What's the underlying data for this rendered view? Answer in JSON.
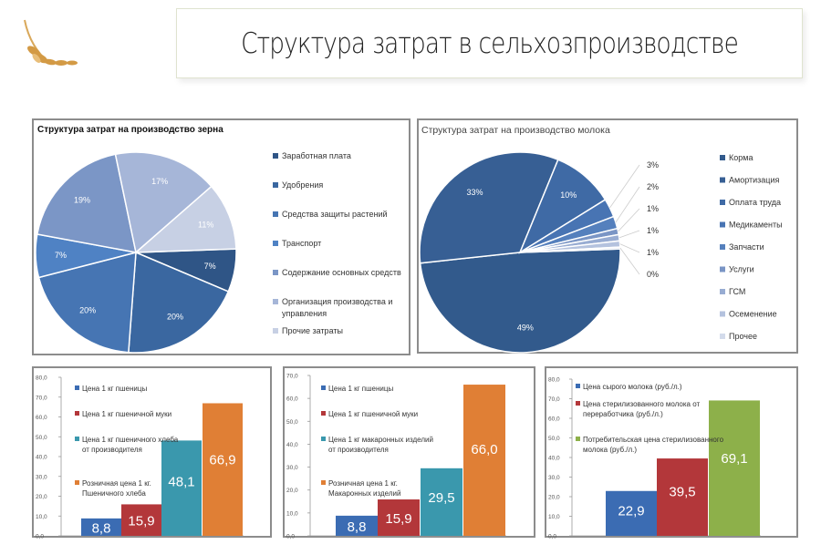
{
  "header": {
    "title": "Структура затрат в сельхозпроизводстве"
  },
  "chart_data": [
    {
      "id": "grain",
      "type": "pie",
      "title": "Структура затрат на производство зерна",
      "labels": [
        "Заработная плата",
        "Удобрения",
        "Средства защиты растений",
        "Транспорт",
        "Содержание основных средств",
        "Организация производства и управления",
        "Прочие затраты"
      ],
      "values": [
        7,
        20,
        20,
        7,
        19,
        17,
        11
      ],
      "data_labels": [
        "7%",
        "20%",
        "20%",
        "7%",
        "19%",
        "17%",
        "11%"
      ],
      "colors": [
        "#2f5586",
        "#3a67a0",
        "#4675b3",
        "#4f82c4",
        "#7b96c6",
        "#a6b6d8",
        "#c7d0e4"
      ],
      "legend": "right"
    },
    {
      "id": "milk",
      "type": "pie",
      "title": "Структура затрат на производство молока",
      "labels": [
        "Корма",
        "Амортизация",
        "Оплата труда",
        "Медикаменты",
        "Запчасти",
        "Услуги",
        "ГСМ",
        "Осеменение",
        "Прочее"
      ],
      "values": [
        49,
        33,
        10,
        3,
        2,
        1,
        1,
        1,
        0.3
      ],
      "data_labels": [
        "49%",
        "33%",
        "10%",
        "3%",
        "2%",
        "1%",
        "1%",
        "1%",
        "0%"
      ],
      "colors": [
        "#325a8c",
        "#375f94",
        "#3f6aa5",
        "#4874b3",
        "#5580bd",
        "#7a95c5",
        "#98acd2",
        "#b4c2de",
        "#d3dbeb"
      ],
      "legend": "right"
    },
    {
      "id": "bread",
      "type": "bar",
      "categories": [
        "Цена 1 кг пшеницы",
        "Цена 1 кг пшеничной муки",
        "Цена 1 кг пшеничного хлеба от производителя",
        "Розничная цена 1 кг. Пшеничного хлеба"
      ],
      "values": [
        8.8,
        15.9,
        48.1,
        66.9
      ],
      "data_labels": [
        "8,8",
        "15,9",
        "48,1",
        "66,9"
      ],
      "colors": [
        "#3b6cb3",
        "#b3373a",
        "#3a98ad",
        "#e07f35"
      ],
      "ylim": [
        0,
        80
      ],
      "yticks": [
        "0,0",
        "10,0",
        "20,0",
        "30,0",
        "40,0",
        "50,0",
        "60,0",
        "70,0",
        "80,0"
      ],
      "legend": "top-left"
    },
    {
      "id": "pasta",
      "type": "bar",
      "categories": [
        "Цена 1 кг пшеницы",
        "Цена 1 кг пшеничной муки",
        "Цена 1 кг макаронных изделий от производителя",
        "Розничная цена 1 кг. Макаронных изделий"
      ],
      "values": [
        8.8,
        15.9,
        29.5,
        66.0
      ],
      "data_labels": [
        "8,8",
        "15,9",
        "29,5",
        "66,0"
      ],
      "colors": [
        "#3b6cb3",
        "#b3373a",
        "#3a98ad",
        "#e07f35"
      ],
      "ylim": [
        0,
        70
      ],
      "yticks": [
        "0,0",
        "10,0",
        "20,0",
        "30,0",
        "40,0",
        "50,0",
        "60,0",
        "70,0"
      ],
      "legend": "top-left"
    },
    {
      "id": "milkprice",
      "type": "bar",
      "categories": [
        "Цена сырого молока (руб./л.)",
        "Цена стерилизованного молока от переработчика (руб./л.)",
        "Потребительская цена стерилизованного молока (руб./л.)"
      ],
      "values": [
        22.9,
        39.5,
        69.1
      ],
      "data_labels": [
        "22,9",
        "39,5",
        "69,1"
      ],
      "colors": [
        "#3b6cb3",
        "#b3373a",
        "#8db04a"
      ],
      "ylim": [
        0,
        80
      ],
      "yticks": [
        "0,0",
        "10,0",
        "20,0",
        "30,0",
        "40,0",
        "50,0",
        "60,0",
        "70,0",
        "80,0"
      ],
      "legend": "top-left"
    }
  ]
}
